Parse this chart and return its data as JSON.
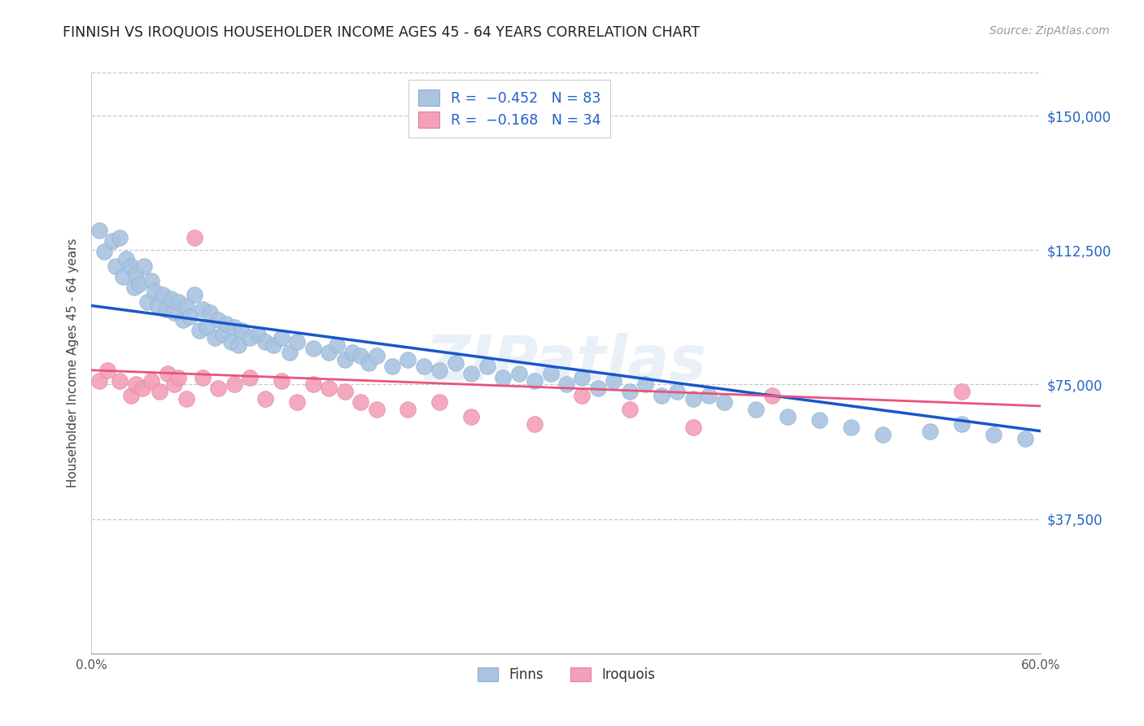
{
  "title": "FINNISH VS IROQUOIS HOUSEHOLDER INCOME AGES 45 - 64 YEARS CORRELATION CHART",
  "source": "Source: ZipAtlas.com",
  "ylabel": "Householder Income Ages 45 - 64 years",
  "xlim": [
    0.0,
    0.6
  ],
  "ylim": [
    0,
    162000
  ],
  "xticks": [
    0.0,
    0.1,
    0.2,
    0.3,
    0.4,
    0.5,
    0.6
  ],
  "xticklabels": [
    "0.0%",
    "",
    "",
    "",
    "",
    "",
    "60.0%"
  ],
  "ytick_positions": [
    0,
    37500,
    75000,
    112500,
    150000
  ],
  "ytick_labels_right": [
    "",
    "$37,500",
    "$75,000",
    "$112,500",
    "$150,000"
  ],
  "finn_color": "#aac4e0",
  "iroquois_color": "#f4a0b8",
  "finn_line_color": "#1a56cc",
  "iroquois_line_color": "#e8547a",
  "watermark": "ZIPatlas",
  "finns_x": [
    0.005,
    0.008,
    0.013,
    0.015,
    0.018,
    0.02,
    0.022,
    0.025,
    0.027,
    0.028,
    0.03,
    0.033,
    0.035,
    0.038,
    0.04,
    0.042,
    0.045,
    0.047,
    0.05,
    0.052,
    0.055,
    0.058,
    0.06,
    0.062,
    0.065,
    0.068,
    0.07,
    0.073,
    0.075,
    0.078,
    0.08,
    0.083,
    0.085,
    0.088,
    0.09,
    0.093,
    0.095,
    0.1,
    0.105,
    0.11,
    0.115,
    0.12,
    0.125,
    0.13,
    0.14,
    0.15,
    0.155,
    0.16,
    0.165,
    0.17,
    0.175,
    0.18,
    0.19,
    0.2,
    0.21,
    0.22,
    0.23,
    0.24,
    0.25,
    0.26,
    0.27,
    0.28,
    0.29,
    0.3,
    0.31,
    0.32,
    0.33,
    0.34,
    0.35,
    0.36,
    0.37,
    0.38,
    0.39,
    0.4,
    0.42,
    0.44,
    0.46,
    0.48,
    0.5,
    0.53,
    0.55,
    0.57,
    0.59
  ],
  "finns_y": [
    118000,
    112000,
    115000,
    108000,
    116000,
    105000,
    110000,
    108000,
    102000,
    106000,
    103000,
    108000,
    98000,
    104000,
    101000,
    97000,
    100000,
    96000,
    99000,
    95000,
    98000,
    93000,
    97000,
    94000,
    100000,
    90000,
    96000,
    91000,
    95000,
    88000,
    93000,
    89000,
    92000,
    87000,
    91000,
    86000,
    90000,
    88000,
    89000,
    87000,
    86000,
    88000,
    84000,
    87000,
    85000,
    84000,
    86000,
    82000,
    84000,
    83000,
    81000,
    83000,
    80000,
    82000,
    80000,
    79000,
    81000,
    78000,
    80000,
    77000,
    78000,
    76000,
    78000,
    75000,
    77000,
    74000,
    76000,
    73000,
    75000,
    72000,
    73000,
    71000,
    72000,
    70000,
    68000,
    66000,
    65000,
    63000,
    61000,
    62000,
    64000,
    61000,
    60000
  ],
  "iroquois_x": [
    0.005,
    0.01,
    0.018,
    0.025,
    0.028,
    0.032,
    0.038,
    0.043,
    0.048,
    0.052,
    0.055,
    0.06,
    0.065,
    0.07,
    0.08,
    0.09,
    0.1,
    0.11,
    0.12,
    0.13,
    0.14,
    0.15,
    0.16,
    0.17,
    0.18,
    0.2,
    0.22,
    0.24,
    0.28,
    0.31,
    0.34,
    0.38,
    0.43,
    0.55
  ],
  "iroquois_y": [
    76000,
    79000,
    76000,
    72000,
    75000,
    74000,
    76000,
    73000,
    78000,
    75000,
    77000,
    71000,
    116000,
    77000,
    74000,
    75000,
    77000,
    71000,
    76000,
    70000,
    75000,
    74000,
    73000,
    70000,
    68000,
    68000,
    70000,
    66000,
    64000,
    72000,
    68000,
    63000,
    72000,
    73000
  ],
  "finn_trend_x0": 0.0,
  "finn_trend_y0": 97000,
  "finn_trend_x1": 0.6,
  "finn_trend_y1": 62000,
  "iroq_trend_x0": 0.0,
  "iroq_trend_y0": 79000,
  "iroq_trend_x1": 0.6,
  "iroq_trend_y1": 69000
}
